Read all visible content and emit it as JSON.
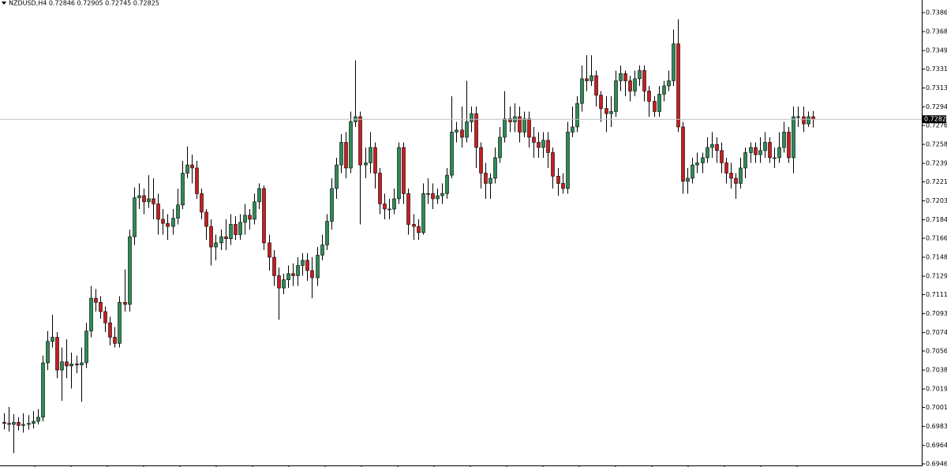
{
  "chart_data": {
    "type": "candlestick",
    "title": "NZDUSD,H4  0.72846 0.72905 0.72745 0.72825",
    "ylim": [
      0.6945,
      0.73988
    ],
    "yticks": [
      0.73865,
      {
        "value": 0.7368,
        "label": "0.73680"
      },
      0.73495,
      0.73315,
      {
        "value": 0.7313,
        "label": "0.73130"
      },
      0.72945,
      0.72765,
      {
        "value": 0.7258,
        "label": "0.72580"
      },
      0.72395,
      0.72215,
      {
        "value": 0.7203,
        "label": "0.72030"
      },
      0.71845,
      0.71665,
      {
        "value": 0.7148,
        "label": "0.71480"
      },
      0.71295,
      0.71115,
      {
        "value": 0.7093,
        "label": "0.70930"
      },
      0.70745,
      0.70565,
      {
        "value": 0.7038,
        "label": "0.70380"
      },
      0.70195,
      0.70015,
      {
        "value": 0.6983,
        "label": "0.69830"
      },
      0.69645,
      0.69465
    ],
    "up_color": "#2e8b57",
    "down_color": "#c81e1e",
    "open": [
      0.6987,
      0.6986,
      0.6985,
      0.6987,
      0.6984,
      0.6985,
      0.6986,
      0.6988,
      0.6992,
      0.7045,
      0.7066,
      0.707,
      0.7038,
      0.7046,
      0.7042,
      0.7044,
      0.7043,
      0.7045,
      0.7076,
      0.7108,
      0.7104,
      0.7095,
      0.7084,
      0.707,
      0.7064,
      0.7104,
      0.7102,
      0.7168,
      0.7206,
      0.7208,
      0.7202,
      0.7205,
      0.72,
      0.7185,
      0.7181,
      0.7178,
      0.7186,
      0.7199,
      0.723,
      0.7238,
      0.7235,
      0.721,
      0.7192,
      0.7178,
      0.7158,
      0.7162,
      0.7168,
      0.7166,
      0.718,
      0.717,
      0.7182,
      0.7189,
      0.7185,
      0.7202,
      0.7215,
      0.7162,
      0.7148,
      0.713,
      0.7118,
      0.7126,
      0.7132,
      0.713,
      0.714,
      0.7145,
      0.7135,
      0.7128,
      0.715,
      0.716,
      0.7183,
      0.7215,
      0.7238,
      0.726,
      0.7235,
      0.728,
      0.7285,
      0.7238,
      0.724,
      0.7255,
      0.723,
      0.72,
      0.7195,
      0.7195,
      0.7205,
      0.7255,
      0.721,
      0.718,
      0.7178,
      0.7172,
      0.721,
      0.721,
      0.7205,
      0.7208,
      0.721,
      0.7228,
      0.727,
      0.7272,
      0.7265,
      0.728,
      0.7288,
      0.7255,
      0.723,
      0.722,
      0.7225,
      0.7245,
      0.7265,
      0.7283,
      0.728,
      0.7285,
      0.727,
      0.7283,
      0.7265,
      0.726,
      0.7255,
      0.7262,
      0.725,
      0.7227,
      0.722,
      0.7215,
      0.727,
      0.7275,
      0.7298,
      0.7322,
      0.732,
      0.7325,
      0.7306,
      0.7293,
      0.7288,
      0.729,
      0.732,
      0.7327,
      0.732,
      0.731,
      0.7322,
      0.733,
      0.731,
      0.73,
      0.729,
      0.7307,
      0.7315,
      0.732,
      0.7356,
      0.7275,
      0.7222,
      0.7225,
      0.7238,
      0.724,
      0.7245,
      0.7255,
      0.7258,
      0.7252,
      0.724,
      0.723,
      0.7225,
      0.722,
      0.7235,
      0.725,
      0.7255,
      0.7248,
      0.7252,
      0.726,
      0.7245,
      0.7245,
      0.7255,
      0.727,
      0.7245,
      0.7285,
      0.7285,
      0.7278,
      0.7285
    ],
    "high": [
      0.6996,
      0.7002,
      0.6995,
      0.6992,
      0.6996,
      0.6994,
      0.6998,
      0.7,
      0.7052,
      0.7076,
      0.7092,
      0.7075,
      0.706,
      0.7068,
      0.7055,
      0.7052,
      0.706,
      0.7084,
      0.712,
      0.7117,
      0.711,
      0.71,
      0.709,
      0.708,
      0.711,
      0.7136,
      0.7175,
      0.7216,
      0.722,
      0.7215,
      0.7228,
      0.7225,
      0.721,
      0.7195,
      0.719,
      0.7195,
      0.7215,
      0.7242,
      0.7256,
      0.7248,
      0.7242,
      0.7215,
      0.7195,
      0.7185,
      0.717,
      0.7175,
      0.7185,
      0.719,
      0.7188,
      0.719,
      0.72,
      0.7195,
      0.721,
      0.722,
      0.7218,
      0.717,
      0.7155,
      0.7138,
      0.7132,
      0.714,
      0.7142,
      0.7148,
      0.7152,
      0.7152,
      0.7148,
      0.7158,
      0.717,
      0.719,
      0.7225,
      0.7245,
      0.7268,
      0.727,
      0.729,
      0.734,
      0.729,
      0.7255,
      0.727,
      0.726,
      0.7235,
      0.721,
      0.7205,
      0.7215,
      0.726,
      0.726,
      0.7215,
      0.719,
      0.7185,
      0.722,
      0.7225,
      0.722,
      0.7215,
      0.722,
      0.7235,
      0.7305,
      0.728,
      0.7295,
      0.732,
      0.7295,
      0.7295,
      0.726,
      0.724,
      0.723,
      0.7255,
      0.7275,
      0.731,
      0.7295,
      0.7298,
      0.7295,
      0.729,
      0.729,
      0.7275,
      0.727,
      0.727,
      0.727,
      0.7255,
      0.7235,
      0.723,
      0.728,
      0.7295,
      0.7305,
      0.7335,
      0.7345,
      0.7345,
      0.733,
      0.731,
      0.7305,
      0.7305,
      0.733,
      0.7335,
      0.733,
      0.7325,
      0.733,
      0.7335,
      0.7335,
      0.7315,
      0.7305,
      0.7315,
      0.732,
      0.733,
      0.737,
      0.738,
      0.728,
      0.7235,
      0.7245,
      0.725,
      0.725,
      0.7265,
      0.727,
      0.7265,
      0.726,
      0.7245,
      0.724,
      0.723,
      0.7245,
      0.7255,
      0.726,
      0.726,
      0.7265,
      0.727,
      0.7265,
      0.7255,
      0.727,
      0.728,
      0.7275,
      0.7295,
      0.7295,
      0.7295,
      0.729,
      0.72905
    ],
    "low": [
      0.698,
      0.6978,
      0.6957,
      0.6979,
      0.6977,
      0.698,
      0.6981,
      0.6985,
      0.6988,
      0.7038,
      0.706,
      0.703,
      0.7008,
      0.703,
      0.702,
      0.7035,
      0.7007,
      0.704,
      0.707,
      0.7095,
      0.7088,
      0.7075,
      0.7062,
      0.706,
      0.706,
      0.7095,
      0.7095,
      0.716,
      0.7195,
      0.719,
      0.7196,
      0.7185,
      0.717,
      0.717,
      0.7165,
      0.717,
      0.718,
      0.7195,
      0.7225,
      0.722,
      0.7205,
      0.7185,
      0.7165,
      0.714,
      0.7145,
      0.7155,
      0.7155,
      0.716,
      0.7165,
      0.7165,
      0.717,
      0.7175,
      0.718,
      0.7195,
      0.7155,
      0.7135,
      0.712,
      0.7087,
      0.7112,
      0.7118,
      0.712,
      0.712,
      0.713,
      0.7125,
      0.7108,
      0.712,
      0.7145,
      0.7155,
      0.7175,
      0.7205,
      0.723,
      0.7225,
      0.723,
      0.7275,
      0.718,
      0.7225,
      0.723,
      0.7215,
      0.719,
      0.7185,
      0.7185,
      0.719,
      0.72,
      0.72,
      0.717,
      0.7165,
      0.7165,
      0.717,
      0.72,
      0.7195,
      0.72,
      0.72,
      0.7205,
      0.7225,
      0.726,
      0.7255,
      0.726,
      0.727,
      0.7235,
      0.7215,
      0.7205,
      0.7205,
      0.722,
      0.724,
      0.726,
      0.727,
      0.727,
      0.726,
      0.7265,
      0.7255,
      0.7245,
      0.7245,
      0.7245,
      0.7235,
      0.7215,
      0.7208,
      0.721,
      0.721,
      0.7265,
      0.727,
      0.729,
      0.731,
      0.7315,
      0.7295,
      0.728,
      0.727,
      0.7275,
      0.7285,
      0.731,
      0.7305,
      0.73,
      0.7305,
      0.7315,
      0.73,
      0.7285,
      0.7285,
      0.7285,
      0.73,
      0.731,
      0.7315,
      0.727,
      0.721,
      0.721,
      0.722,
      0.723,
      0.723,
      0.724,
      0.7245,
      0.724,
      0.723,
      0.722,
      0.7215,
      0.7205,
      0.7215,
      0.7225,
      0.724,
      0.724,
      0.724,
      0.7245,
      0.724,
      0.7235,
      0.724,
      0.725,
      0.724,
      0.723,
      0.7275,
      0.727,
      0.7275,
      0.72745
    ],
    "close": [
      0.6986,
      0.6985,
      0.6987,
      0.6984,
      0.6985,
      0.6986,
      0.6988,
      0.6992,
      0.7045,
      0.7066,
      0.707,
      0.7038,
      0.7046,
      0.7042,
      0.7044,
      0.7043,
      0.7045,
      0.7076,
      0.7108,
      0.7104,
      0.7095,
      0.7084,
      0.707,
      0.7064,
      0.7104,
      0.7102,
      0.7168,
      0.7206,
      0.7208,
      0.7202,
      0.7205,
      0.72,
      0.7185,
      0.7181,
      0.7178,
      0.7186,
      0.7199,
      0.723,
      0.7238,
      0.7235,
      0.721,
      0.7192,
      0.7178,
      0.7158,
      0.7162,
      0.7168,
      0.7166,
      0.718,
      0.717,
      0.7182,
      0.7189,
      0.7185,
      0.7202,
      0.7215,
      0.7162,
      0.7148,
      0.713,
      0.7118,
      0.7126,
      0.7132,
      0.713,
      0.714,
      0.7145,
      0.7135,
      0.7128,
      0.715,
      0.716,
      0.7183,
      0.7215,
      0.7238,
      0.726,
      0.7235,
      0.728,
      0.7285,
      0.7238,
      0.724,
      0.7255,
      0.723,
      0.72,
      0.7195,
      0.7195,
      0.7205,
      0.7255,
      0.721,
      0.718,
      0.7178,
      0.7172,
      0.721,
      0.721,
      0.7205,
      0.7208,
      0.721,
      0.7228,
      0.727,
      0.7272,
      0.7265,
      0.728,
      0.7288,
      0.7255,
      0.723,
      0.722,
      0.7225,
      0.7245,
      0.7265,
      0.7283,
      0.728,
      0.7285,
      0.727,
      0.7283,
      0.7265,
      0.726,
      0.7255,
      0.7262,
      0.725,
      0.7227,
      0.722,
      0.7215,
      0.727,
      0.7275,
      0.7298,
      0.7322,
      0.732,
      0.7325,
      0.7306,
      0.7293,
      0.7288,
      0.729,
      0.732,
      0.7327,
      0.732,
      0.731,
      0.7322,
      0.733,
      0.731,
      0.73,
      0.729,
      0.7307,
      0.7315,
      0.732,
      0.7356,
      0.7275,
      0.7222,
      0.7225,
      0.7238,
      0.724,
      0.7245,
      0.7255,
      0.7258,
      0.7252,
      0.724,
      0.723,
      0.7225,
      0.722,
      0.7235,
      0.725,
      0.7255,
      0.7248,
      0.7252,
      0.726,
      0.7245,
      0.7245,
      0.7255,
      0.727,
      0.7245,
      0.7285,
      0.7285,
      0.7278,
      0.7285,
      0.72825
    ]
  }
}
